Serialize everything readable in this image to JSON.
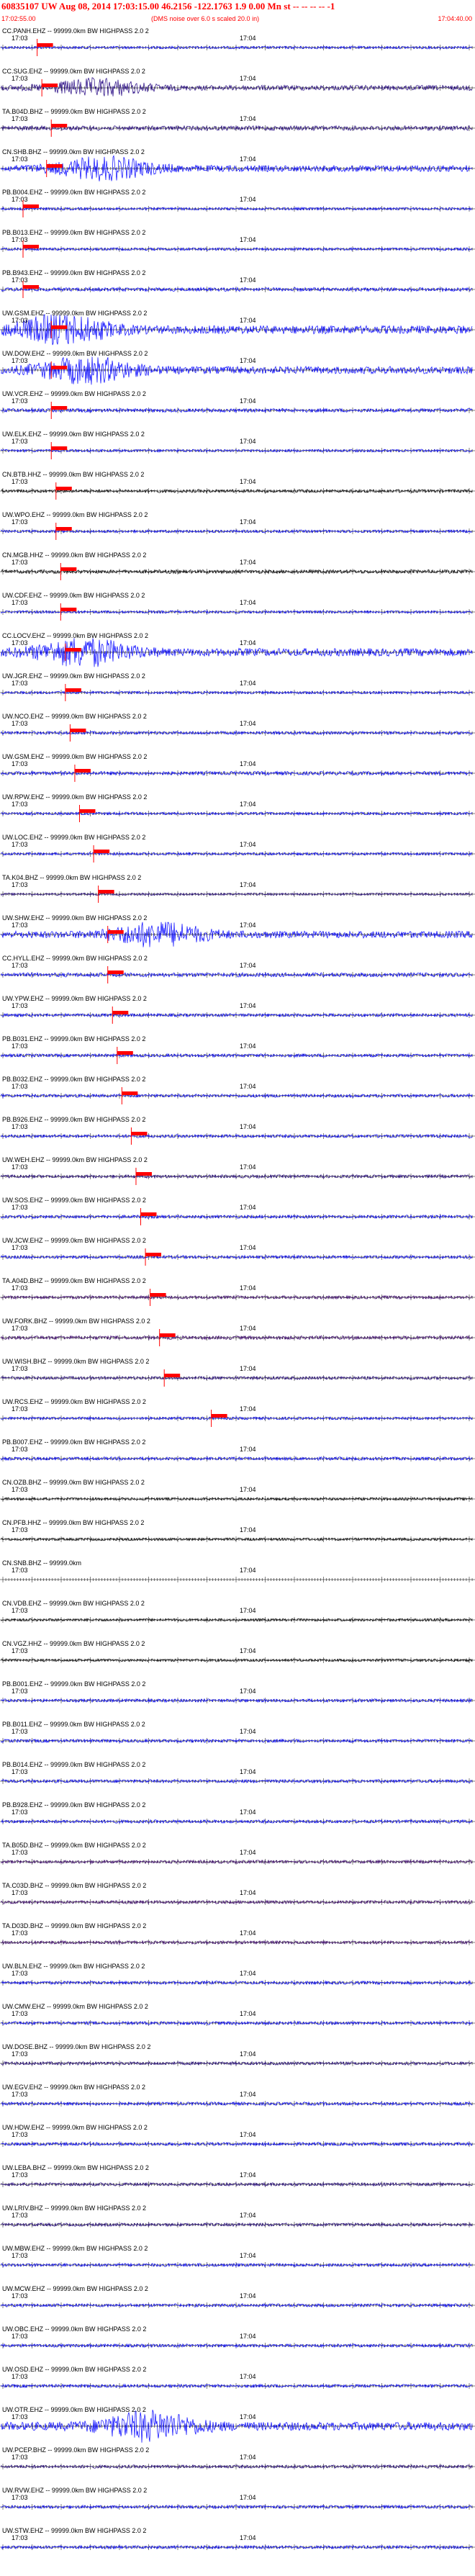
{
  "header": {
    "title": "60835107 UW Aug 08, 2014 17:03:15.00   46.2156  -122.1763   1.9 0.00 Mn st -- -- -- -- -1",
    "start_time": "17:02:55.00",
    "note": "(DMS noise over 6.0 s scaled 20.0 in)",
    "end_time": "17:04:40.00",
    "color": "#ff0000"
  },
  "time_ticks": [
    "17:03",
    "17:04"
  ],
  "colors": {
    "black": "#000000",
    "blue": "#0000ff",
    "navy": "#1f007f",
    "purple": "#3b0070",
    "pick": "#ff0000"
  },
  "traces": [
    {
      "label": "CC.PANH.EHZ -- 99999.0km BW  HIGHPASS  2.0  2",
      "color": "#0000ff",
      "amp": 0.3,
      "pick": 0.03
    },
    {
      "label": "CC.SUG.EHZ -- 99999.0km BW  HIGHPASS  2.0  2",
      "color": "#1f007f",
      "amp": 0.55,
      "pick": 0.04
    },
    {
      "label": "TA.B04D.BHZ -- 99999.0km BW  HIGHPASS  2.0  2",
      "color": "#1f007f",
      "amp": 0.5,
      "pick": 0.06
    },
    {
      "label": "CN.SHB.BHZ -- 99999.0km BW  HIGHPASS  2.0  2",
      "color": "#0000ff",
      "amp": 0.7,
      "pick": 0.05
    },
    {
      "label": "PB.B004.EHZ -- 99999.0km BW  HIGHPASS  2.0  2",
      "color": "#0000ff",
      "amp": 0.3,
      "pick": 0.0
    },
    {
      "label": "PB.B013.EHZ -- 99999.0km BW  HIGHPASS  2.0  2",
      "color": "#0000ff",
      "amp": 0.3,
      "pick": 0.0
    },
    {
      "label": "PB.B943.EHZ -- 99999.0km BW  HIGHPASS  2.0  2",
      "color": "#0000ff",
      "amp": 0.4,
      "pick": 0.0
    },
    {
      "label": "UW.GSM.EHZ -- 99999.0km BW  HIGHPASS  2.0  2",
      "color": "#0000ff",
      "amp": 0.9,
      "pick": 0.06
    },
    {
      "label": "UW.DOW.EHZ -- 99999.0km BW  HIGHPASS  2.0  2",
      "color": "#0000ff",
      "amp": 0.8,
      "pick": 0.06
    },
    {
      "label": "UW.VCR.EHZ -- 99999.0km BW  HIGHPASS  2.0  2",
      "color": "#0000ff",
      "amp": 0.4,
      "pick": 0.06
    },
    {
      "label": "UW.ELK.EHZ -- 99999.0km BW  HIGHPASS  2.0  2",
      "color": "#0000ff",
      "amp": 0.3,
      "pick": 0.06
    },
    {
      "label": "CN.BTB.HHZ -- 99999.0km BW  HIGHPASS  2.0  2",
      "color": "#000000",
      "amp": 0.35,
      "pick": 0.07
    },
    {
      "label": "UW.WPO.EHZ -- 99999.0km BW  HIGHPASS  2.0  2",
      "color": "#0000ff",
      "amp": 0.3,
      "pick": 0.07
    },
    {
      "label": "CN.MGB.HHZ -- 99999.0km BW  HIGHPASS  2.0  2",
      "color": "#000000",
      "amp": 0.4,
      "pick": 0.08
    },
    {
      "label": "UW.CDF.EHZ -- 99999.0km BW  HIGHPASS  2.0  2",
      "color": "#0000ff",
      "amp": 0.3,
      "pick": 0.08
    },
    {
      "label": "CC.LOCV.EHZ -- 99999.0km BW  HIGHPASS  2.0  2",
      "color": "#0000ff",
      "amp": 0.85,
      "pick": 0.09
    },
    {
      "label": "UW.JGR.EHZ -- 99999.0km BW  HIGHPASS  2.0  2",
      "color": "#0000ff",
      "amp": 0.3,
      "pick": 0.09
    },
    {
      "label": "UW.NCO.EHZ -- 99999.0km BW  HIGHPASS  2.0  2",
      "color": "#0000ff",
      "amp": 0.35,
      "pick": 0.1
    },
    {
      "label": "UW.GSM.EHZ -- 99999.0km BW  HIGHPASS  2.0  2",
      "color": "#0000ff",
      "amp": 0.4,
      "pick": 0.11
    },
    {
      "label": "UW.RPW.EHZ -- 99999.0km BW  HIGHPASS  2.0  2",
      "color": "#0000ff",
      "amp": 0.3,
      "pick": 0.12
    },
    {
      "label": "UW.LOC.EHZ -- 99999.0km BW  HIGHPASS  2.0  2",
      "color": "#0000ff",
      "amp": 0.3,
      "pick": 0.15
    },
    {
      "label": "TA.K04.BHZ -- 99999.0km BW  HIGHPASS  2.0  2",
      "color": "#1f007f",
      "amp": 0.25,
      "pick": 0.16
    },
    {
      "label": "UW.SHW.EHZ -- 99999.0km BW  HIGHPASS  2.0  2",
      "color": "#0000ff",
      "amp": 0.75,
      "pick": 0.18
    },
    {
      "label": "CC.HYLL.EHZ -- 99999.0km BW  HIGHPASS  2.0  2",
      "color": "#0000ff",
      "amp": 0.45,
      "pick": 0.18
    },
    {
      "label": "UW.YPW.EHZ -- 99999.0km BW  HIGHPASS  2.0  2",
      "color": "#0000ff",
      "amp": 0.35,
      "pick": 0.19
    },
    {
      "label": "PB.B031.EHZ -- 99999.0km BW  HIGHPASS  2.0  2",
      "color": "#0000ff",
      "amp": 0.35,
      "pick": 0.2
    },
    {
      "label": "PB.B032.EHZ -- 99999.0km BW  HIGHPASS  2.0  2",
      "color": "#0000ff",
      "amp": 0.35,
      "pick": 0.21
    },
    {
      "label": "PB.B926.EHZ -- 99999.0km BW  HIGHPASS  2.0  2",
      "color": "#0000ff",
      "amp": 0.35,
      "pick": 0.23
    },
    {
      "label": "UW.WEH.EHZ -- 99999.0km BW  HIGHPASS  2.0  2",
      "color": "#1f007f",
      "amp": 0.35,
      "pick": 0.24
    },
    {
      "label": "UW.SOS.EHZ -- 99999.0km BW  HIGHPASS  2.0  2",
      "color": "#0000ff",
      "amp": 0.35,
      "pick": 0.25
    },
    {
      "label": "UW.JCW.EHZ -- 99999.0km BW  HIGHPASS  2.0  2",
      "color": "#0000ff",
      "amp": 0.35,
      "pick": 0.26
    },
    {
      "label": "TA.A04D.BHZ -- 99999.0km BW  HIGHPASS  2.0  2",
      "color": "#3b0070",
      "amp": 0.35,
      "pick": 0.27
    },
    {
      "label": "UW.FORK.BHZ -- 99999.0km BW  HIGHPASS  2.0  2",
      "color": "#3b0070",
      "amp": 0.4,
      "pick": 0.29
    },
    {
      "label": "UW.WISH.BHZ -- 99999.0km BW  HIGHPASS  2.0  2",
      "color": "#1f007f",
      "amp": 0.35,
      "pick": 0.3
    },
    {
      "label": "UW.RCS.EHZ -- 99999.0km BW  HIGHPASS  2.0  2",
      "color": "#0000ff",
      "amp": 0.3,
      "pick": 0.4
    },
    {
      "label": "PB.B007.EHZ -- 99999.0km BW  HIGHPASS  2.0  2",
      "color": "#0000ff",
      "amp": 0.35,
      "pick": -1
    },
    {
      "label": "CN.OZB.BHZ -- 99999.0km BW  HIGHPASS  2.0  2",
      "color": "#000000",
      "amp": 0.3,
      "pick": -1
    },
    {
      "label": "CN.PFB.HHZ -- 99999.0km BW  HIGHPASS  2.0  2",
      "color": "#000000",
      "amp": 0.3,
      "pick": -1
    },
    {
      "label": "CN.SNB.BHZ -- 99999.0km",
      "color": "#000000",
      "amp": 0.0,
      "pick": -1
    },
    {
      "label": "CN.VDB.EHZ -- 99999.0km BW  HIGHPASS  2.0  2",
      "color": "#000000",
      "amp": 0.3,
      "pick": -1
    },
    {
      "label": "CN.VGZ.HHZ -- 99999.0km BW  HIGHPASS  2.0  2",
      "color": "#000000",
      "amp": 0.3,
      "pick": -1
    },
    {
      "label": "PB.B001.EHZ -- 99999.0km BW  HIGHPASS  2.0  2",
      "color": "#0000ff",
      "amp": 0.35,
      "pick": -1
    },
    {
      "label": "PB.B011.EHZ -- 99999.0km BW  HIGHPASS  2.0  2",
      "color": "#0000ff",
      "amp": 0.35,
      "pick": -1
    },
    {
      "label": "PB.B014.EHZ -- 99999.0km BW  HIGHPASS  2.0  2",
      "color": "#0000ff",
      "amp": 0.35,
      "pick": -1
    },
    {
      "label": "PB.B928.EHZ -- 99999.0km BW  HIGHPASS  2.0  2",
      "color": "#0000ff",
      "amp": 0.35,
      "pick": -1
    },
    {
      "label": "TA.B05D.BHZ -- 99999.0km BW  HIGHPASS  2.0  2",
      "color": "#3b0070",
      "amp": 0.35,
      "pick": -1
    },
    {
      "label": "TA.C03D.BHZ -- 99999.0km BW  HIGHPASS  2.0  2",
      "color": "#3b0070",
      "amp": 0.35,
      "pick": -1
    },
    {
      "label": "TA.D03D.BHZ -- 99999.0km BW  HIGHPASS  2.0  2",
      "color": "#3b0070",
      "amp": 0.35,
      "pick": -1
    },
    {
      "label": "UW.BLN.EHZ -- 99999.0km BW  HIGHPASS  2.0  2",
      "color": "#0000ff",
      "amp": 0.35,
      "pick": -1
    },
    {
      "label": "UW.CMW.EHZ -- 99999.0km BW  HIGHPASS  2.0  2",
      "color": "#0000ff",
      "amp": 0.35,
      "pick": -1
    },
    {
      "label": "UW.DOSE.BHZ -- 99999.0km BW  HIGHPASS  2.0  2",
      "color": "#1f007f",
      "amp": 0.35,
      "pick": -1
    },
    {
      "label": "UW.EGV.EHZ -- 99999.0km BW  HIGHPASS  2.0  2",
      "color": "#0000ff",
      "amp": 0.35,
      "pick": -1
    },
    {
      "label": "UW.HDW.EHZ -- 99999.0km BW  HIGHPASS  2.0  2",
      "color": "#0000ff",
      "amp": 0.35,
      "pick": -1
    },
    {
      "label": "UW.LEBA.BHZ -- 99999.0km BW  HIGHPASS  2.0  2",
      "color": "#1f007f",
      "amp": 0.35,
      "pick": -1
    },
    {
      "label": "UW.LRIV.BHZ -- 99999.0km BW  HIGHPASS  2.0  2",
      "color": "#1f007f",
      "amp": 0.35,
      "pick": -1
    },
    {
      "label": "UW.MBW.EHZ -- 99999.0km BW  HIGHPASS  2.0  2",
      "color": "#0000ff",
      "amp": 0.35,
      "pick": -1
    },
    {
      "label": "UW.MCW.EHZ -- 99999.0km BW  HIGHPASS  2.0  2",
      "color": "#0000ff",
      "amp": 0.35,
      "pick": -1
    },
    {
      "label": "UW.OBC.EHZ -- 99999.0km BW  HIGHPASS  2.0  2",
      "color": "#0000ff",
      "amp": 0.35,
      "pick": -1
    },
    {
      "label": "UW.OSD.EHZ -- 99999.0km BW  HIGHPASS  2.0  2",
      "color": "#0000ff",
      "amp": 0.35,
      "pick": -1
    },
    {
      "label": "UW.OTR.EHZ -- 99999.0km BW  HIGHPASS  2.0  2",
      "color": "#0000ff",
      "amp": 0.9,
      "pick": -1
    },
    {
      "label": "UW.PCEP.BHZ -- 99999.0km BW  HIGHPASS  2.0  2",
      "color": "#1f007f",
      "amp": 0.35,
      "pick": -1
    },
    {
      "label": "UW.RVW.EHZ -- 99999.0km BW  HIGHPASS  2.0  2",
      "color": "#0000ff",
      "amp": 0.35,
      "pick": -1
    },
    {
      "label": "UW.STW.EHZ -- 99999.0km BW  HIGHPASS  2.0  2",
      "color": "#0000ff",
      "amp": 0.35,
      "pick": -1
    }
  ]
}
